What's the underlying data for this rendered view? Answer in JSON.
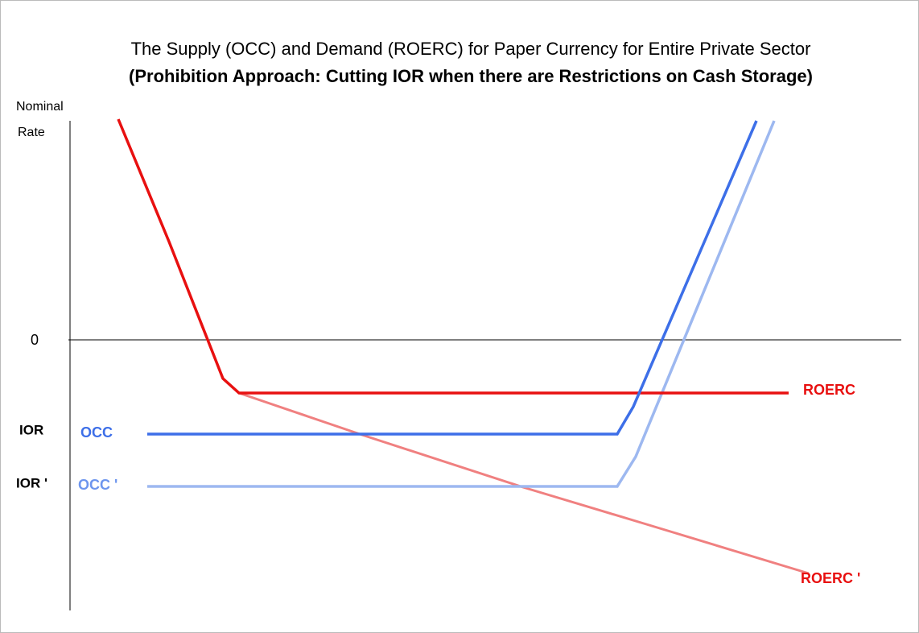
{
  "title": {
    "line1": "The Supply (OCC) and Demand (ROERC) for Paper Currency for Entire Private Sector",
    "line2": "(Prohibition Approach: Cutting IOR when there are Restrictions on Cash Storage)"
  },
  "y_axis": {
    "label_line1": "Nominal",
    "label_line2": "Rate",
    "zero": "0",
    "ior": "IOR",
    "ior_new": "IOR '"
  },
  "curves": {
    "occ": "OCC",
    "occ_new": "OCC '",
    "roerc": "ROERC",
    "roerc_new": "ROERC '"
  }
}
